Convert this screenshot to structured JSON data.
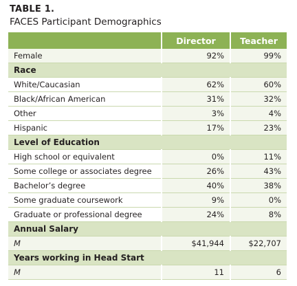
{
  "table_label": "TABLE 1.",
  "table_title": "FACES Participant Demographics",
  "headers": [
    "",
    "Director",
    "Teacher"
  ],
  "rows": [
    {
      "type": "data",
      "shade": "alt",
      "label": "Female",
      "director": "92%",
      "teacher": "99%"
    },
    {
      "type": "section",
      "label": "Race"
    },
    {
      "type": "data",
      "label": "White/Caucasian",
      "director": "62%",
      "teacher": "60%"
    },
    {
      "type": "data",
      "label": "Black/African American",
      "director": "31%",
      "teacher": "32%"
    },
    {
      "type": "data",
      "label": "Other",
      "director": "3%",
      "teacher": "4%"
    },
    {
      "type": "data",
      "label": "Hispanic",
      "director": "17%",
      "teacher": "23%"
    },
    {
      "type": "section",
      "label": "Level of Education"
    },
    {
      "type": "data",
      "label": "High school or equivalent",
      "director": "0%",
      "teacher": "11%"
    },
    {
      "type": "data",
      "label": "Some college or associates degree",
      "director": "26%",
      "teacher": "43%"
    },
    {
      "type": "data",
      "label": "Bachelor’s degree",
      "director": "40%",
      "teacher": "38%"
    },
    {
      "type": "data",
      "label": "Some graduate coursework",
      "director": "9%",
      "teacher": "0%"
    },
    {
      "type": "data",
      "label": "Graduate or professional degree",
      "director": "24%",
      "teacher": "8%"
    },
    {
      "type": "section",
      "label": "Annual Salary"
    },
    {
      "type": "data",
      "shade": "alt",
      "italic": true,
      "label": "M",
      "director": "$41,944",
      "teacher": "$22,707"
    },
    {
      "type": "section",
      "label": "Years working in Head Start"
    },
    {
      "type": "data",
      "shade": "alt",
      "italic": true,
      "label": "M",
      "director": "11",
      "teacher": "6"
    }
  ],
  "colors": {
    "header_bg": "#8db255",
    "section_bg": "#d9e4c3",
    "alt_bg": "#f3f6ec"
  }
}
